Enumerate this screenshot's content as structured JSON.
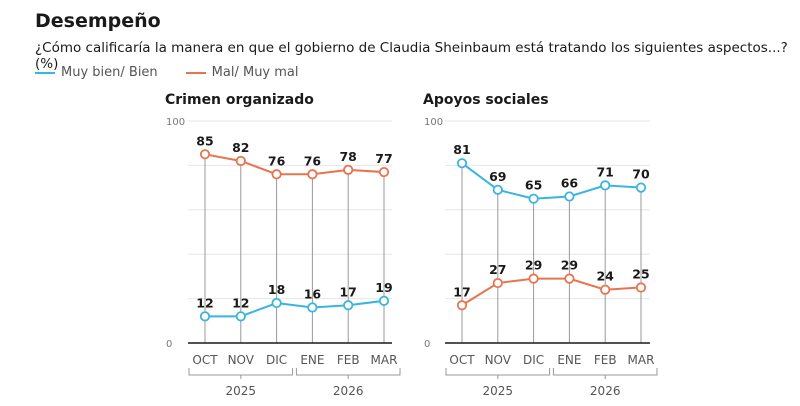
{
  "title": "Desempeño",
  "subtitle": "¿Cómo calificaría la manera en que el gobierno de Claudia Sheinbaum está tratando los siguientes aspectos...? (%)",
  "legend": [
    {
      "label": "Muy bien/ Bien",
      "color": "#3bb4e0"
    },
    {
      "label": "Mal/ Muy mal",
      "color": "#e8734f"
    }
  ],
  "chart_data": [
    {
      "type": "line",
      "title": "Crimen organizado",
      "categories": [
        "OCT",
        "NOV",
        "DIC",
        "ENE",
        "FEB",
        "MAR"
      ],
      "groups": [
        {
          "label": "2025",
          "categories": [
            "OCT",
            "NOV",
            "DIC"
          ]
        },
        {
          "label": "2026",
          "categories": [
            "ENE",
            "FEB",
            "MAR"
          ]
        }
      ],
      "ylim": [
        0,
        100
      ],
      "yticks": [
        "0",
        "100"
      ],
      "grid": true,
      "series": [
        {
          "name": "Muy bien/ Bien",
          "color": "#3bb4e0",
          "values": [
            12,
            12,
            18,
            16,
            17,
            19
          ]
        },
        {
          "name": "Mal/ Muy mal",
          "color": "#e8734f",
          "values": [
            85,
            82,
            76,
            76,
            78,
            77
          ]
        }
      ]
    },
    {
      "type": "line",
      "title": "Apoyos sociales",
      "categories": [
        "OCT",
        "NOV",
        "DIC",
        "ENE",
        "FEB",
        "MAR"
      ],
      "groups": [
        {
          "label": "2025",
          "categories": [
            "OCT",
            "NOV",
            "DIC"
          ]
        },
        {
          "label": "2026",
          "categories": [
            "ENE",
            "FEB",
            "MAR"
          ]
        }
      ],
      "ylim": [
        0,
        100
      ],
      "yticks": [
        "0",
        "100"
      ],
      "grid": true,
      "series": [
        {
          "name": "Muy bien/ Bien",
          "color": "#3bb4e0",
          "values": [
            81,
            69,
            65,
            66,
            71,
            70
          ]
        },
        {
          "name": "Mal/ Muy mal",
          "color": "#e8734f",
          "values": [
            17,
            27,
            29,
            29,
            24,
            25
          ]
        }
      ]
    }
  ]
}
